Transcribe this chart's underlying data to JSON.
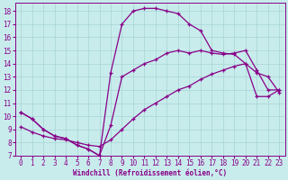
{
  "xlabel": "Windchill (Refroidissement éolien,°C)",
  "background_color": "#c8ecec",
  "grid_color": "#a8d4d4",
  "line_color": "#880088",
  "xlim": [
    -0.5,
    23.5
  ],
  "ylim": [
    7,
    18.6
  ],
  "yticks": [
    7,
    8,
    9,
    10,
    11,
    12,
    13,
    14,
    15,
    16,
    17,
    18
  ],
  "xticks": [
    0,
    1,
    2,
    3,
    4,
    5,
    6,
    7,
    8,
    9,
    10,
    11,
    12,
    13,
    14,
    15,
    16,
    17,
    18,
    19,
    20,
    21,
    22,
    23
  ],
  "line1_x": [
    0,
    1,
    2,
    3,
    4,
    5,
    6,
    7,
    8,
    9,
    10,
    11,
    12,
    13,
    14,
    15,
    16,
    17,
    18,
    19,
    20,
    21,
    22,
    23
  ],
  "line1_y": [
    10.3,
    9.8,
    9.0,
    8.5,
    8.3,
    7.8,
    7.5,
    7.0,
    13.3,
    17.0,
    18.0,
    18.2,
    18.2,
    18.0,
    17.8,
    17.0,
    16.5,
    15.0,
    14.8,
    14.7,
    14.0,
    13.3,
    13.0,
    11.8
  ],
  "line2_x": [
    0,
    1,
    2,
    3,
    4,
    5,
    6,
    7,
    8,
    9,
    10,
    11,
    12,
    13,
    14,
    15,
    16,
    17,
    18,
    19,
    20,
    21,
    22,
    23
  ],
  "line2_y": [
    10.3,
    9.8,
    9.0,
    8.5,
    8.3,
    7.8,
    7.5,
    7.0,
    9.3,
    13.0,
    13.5,
    14.0,
    14.3,
    14.8,
    15.0,
    14.8,
    15.0,
    14.8,
    14.7,
    14.8,
    15.0,
    13.5,
    12.0,
    12.0
  ],
  "line3_x": [
    0,
    1,
    2,
    3,
    4,
    5,
    6,
    7,
    8,
    9,
    10,
    11,
    12,
    13,
    14,
    15,
    16,
    17,
    18,
    19,
    20,
    21,
    22,
    23
  ],
  "line3_y": [
    9.2,
    8.8,
    8.5,
    8.3,
    8.2,
    8.0,
    7.8,
    7.7,
    8.2,
    9.0,
    9.8,
    10.5,
    11.0,
    11.5,
    12.0,
    12.3,
    12.8,
    13.2,
    13.5,
    13.8,
    14.0,
    11.5,
    11.5,
    12.0
  ]
}
